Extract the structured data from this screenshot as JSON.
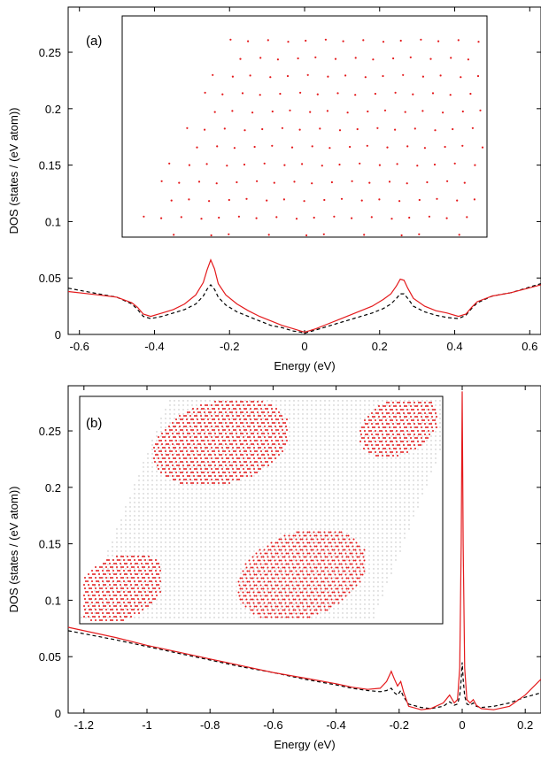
{
  "chart_data": [
    {
      "type": "line",
      "panel_label": "(a)",
      "xlabel": "Energy (eV)",
      "ylabel": "DOS (states / (eV atom))",
      "xlim": [
        -0.63,
        0.63
      ],
      "ylim": [
        0,
        0.29
      ],
      "x_ticks": [
        "-0.6",
        "-0.4",
        "-0.2",
        "0",
        "0.2",
        "0.4",
        "0.6"
      ],
      "x_tick_values": [
        -0.6,
        -0.4,
        -0.2,
        0,
        0.2,
        0.4,
        0.6
      ],
      "y_ticks": [
        "0",
        "0.05",
        "0.1",
        "0.15",
        "0.2",
        "0.25"
      ],
      "y_tick_values": [
        0,
        0.05,
        0.1,
        0.15,
        0.2,
        0.25
      ],
      "grid": false,
      "series": [
        {
          "color": "#e41a1c",
          "style": "solid",
          "x": [
            -0.63,
            -0.55,
            -0.5,
            -0.46,
            -0.445,
            -0.43,
            -0.41,
            -0.38,
            -0.35,
            -0.32,
            -0.29,
            -0.27,
            -0.26,
            -0.25,
            -0.24,
            -0.23,
            -0.21,
            -0.18,
            -0.15,
            -0.12,
            -0.09,
            -0.06,
            -0.03,
            -0.01,
            0,
            0.01,
            0.03,
            0.06,
            0.09,
            0.12,
            0.15,
            0.18,
            0.21,
            0.23,
            0.245,
            0.255,
            0.265,
            0.275,
            0.29,
            0.32,
            0.35,
            0.38,
            0.41,
            0.43,
            0.445,
            0.46,
            0.5,
            0.55,
            0.63
          ],
          "y": [
            0.038,
            0.035,
            0.033,
            0.028,
            0.024,
            0.018,
            0.016,
            0.019,
            0.022,
            0.027,
            0.035,
            0.046,
            0.057,
            0.066,
            0.058,
            0.045,
            0.035,
            0.027,
            0.021,
            0.016,
            0.012,
            0.008,
            0.005,
            0.003,
            0.002,
            0.003,
            0.005,
            0.009,
            0.013,
            0.017,
            0.021,
            0.025,
            0.031,
            0.036,
            0.043,
            0.049,
            0.048,
            0.041,
            0.032,
            0.025,
            0.021,
            0.019,
            0.016,
            0.018,
            0.024,
            0.029,
            0.034,
            0.037,
            0.044
          ]
        },
        {
          "color": "#000000",
          "style": "dashed",
          "x": [
            -0.63,
            -0.55,
            -0.5,
            -0.46,
            -0.445,
            -0.43,
            -0.41,
            -0.38,
            -0.35,
            -0.32,
            -0.29,
            -0.27,
            -0.26,
            -0.25,
            -0.24,
            -0.23,
            -0.21,
            -0.18,
            -0.15,
            -0.12,
            -0.09,
            -0.06,
            -0.03,
            -0.01,
            0,
            0.01,
            0.03,
            0.06,
            0.09,
            0.12,
            0.15,
            0.18,
            0.21,
            0.23,
            0.245,
            0.255,
            0.265,
            0.275,
            0.29,
            0.32,
            0.35,
            0.38,
            0.41,
            0.43,
            0.445,
            0.46,
            0.5,
            0.55,
            0.63
          ],
          "y": [
            0.041,
            0.036,
            0.033,
            0.027,
            0.022,
            0.016,
            0.014,
            0.016,
            0.019,
            0.022,
            0.027,
            0.034,
            0.04,
            0.044,
            0.04,
            0.033,
            0.026,
            0.02,
            0.016,
            0.012,
            0.008,
            0.006,
            0.003,
            0.002,
            0.001,
            0.002,
            0.004,
            0.007,
            0.01,
            0.013,
            0.016,
            0.019,
            0.023,
            0.027,
            0.032,
            0.036,
            0.036,
            0.032,
            0.025,
            0.02,
            0.017,
            0.015,
            0.014,
            0.017,
            0.023,
            0.028,
            0.034,
            0.037,
            0.045
          ]
        }
      ]
    },
    {
      "type": "line",
      "panel_label": "(b)",
      "xlabel": "Energy (eV)",
      "ylabel": "DOS (states / (eV atom))",
      "xlim": [
        -1.25,
        0.25
      ],
      "ylim": [
        0,
        0.29
      ],
      "x_ticks": [
        "-1.2",
        "-1",
        "-0.8",
        "-0.6",
        "-0.4",
        "-0.2",
        "0",
        "0.2"
      ],
      "x_tick_values": [
        -1.2,
        -1.0,
        -0.8,
        -0.6,
        -0.4,
        -0.2,
        0,
        0.2
      ],
      "y_ticks": [
        "0",
        "0.05",
        "0.1",
        "0.15",
        "0.2",
        "0.25"
      ],
      "y_tick_values": [
        0,
        0.05,
        0.1,
        0.15,
        0.2,
        0.25
      ],
      "grid": false,
      "series": [
        {
          "color": "#e41a1c",
          "style": "solid",
          "x": [
            -1.25,
            -1.1,
            -1.0,
            -0.9,
            -0.8,
            -0.7,
            -0.6,
            -0.5,
            -0.4,
            -0.35,
            -0.3,
            -0.26,
            -0.24,
            -0.225,
            -0.215,
            -0.205,
            -0.195,
            -0.185,
            -0.17,
            -0.13,
            -0.1,
            -0.06,
            -0.04,
            -0.025,
            -0.015,
            -0.008,
            -0.003,
            0,
            0.003,
            0.008,
            0.015,
            0.025,
            0.035,
            0.045,
            0.06,
            0.1,
            0.15,
            0.2,
            0.25
          ],
          "y": [
            0.076,
            0.067,
            0.06,
            0.054,
            0.048,
            0.042,
            0.036,
            0.031,
            0.026,
            0.023,
            0.021,
            0.022,
            0.028,
            0.037,
            0.03,
            0.024,
            0.028,
            0.018,
            0.006,
            0.003,
            0.004,
            0.009,
            0.016,
            0.009,
            0.012,
            0.04,
            0.15,
            0.285,
            0.15,
            0.04,
            0.012,
            0.009,
            0.012,
            0.007,
            0.004,
            0.003,
            0.006,
            0.016,
            0.03
          ]
        },
        {
          "color": "#000000",
          "style": "dashed",
          "x": [
            -1.25,
            -1.1,
            -1.0,
            -0.9,
            -0.8,
            -0.7,
            -0.6,
            -0.5,
            -0.4,
            -0.35,
            -0.3,
            -0.26,
            -0.24,
            -0.225,
            -0.215,
            -0.205,
            -0.195,
            -0.185,
            -0.17,
            -0.13,
            -0.1,
            -0.06,
            -0.04,
            -0.025,
            -0.015,
            -0.008,
            -0.003,
            0,
            0.003,
            0.008,
            0.015,
            0.025,
            0.035,
            0.045,
            0.06,
            0.1,
            0.15,
            0.2,
            0.25
          ],
          "y": [
            0.073,
            0.065,
            0.059,
            0.053,
            0.047,
            0.041,
            0.036,
            0.03,
            0.025,
            0.022,
            0.02,
            0.019,
            0.02,
            0.022,
            0.018,
            0.016,
            0.02,
            0.014,
            0.008,
            0.005,
            0.004,
            0.006,
            0.01,
            0.007,
            0.008,
            0.015,
            0.03,
            0.045,
            0.03,
            0.015,
            0.008,
            0.007,
            0.009,
            0.006,
            0.005,
            0.006,
            0.009,
            0.014,
            0.018
          ]
        }
      ]
    }
  ]
}
